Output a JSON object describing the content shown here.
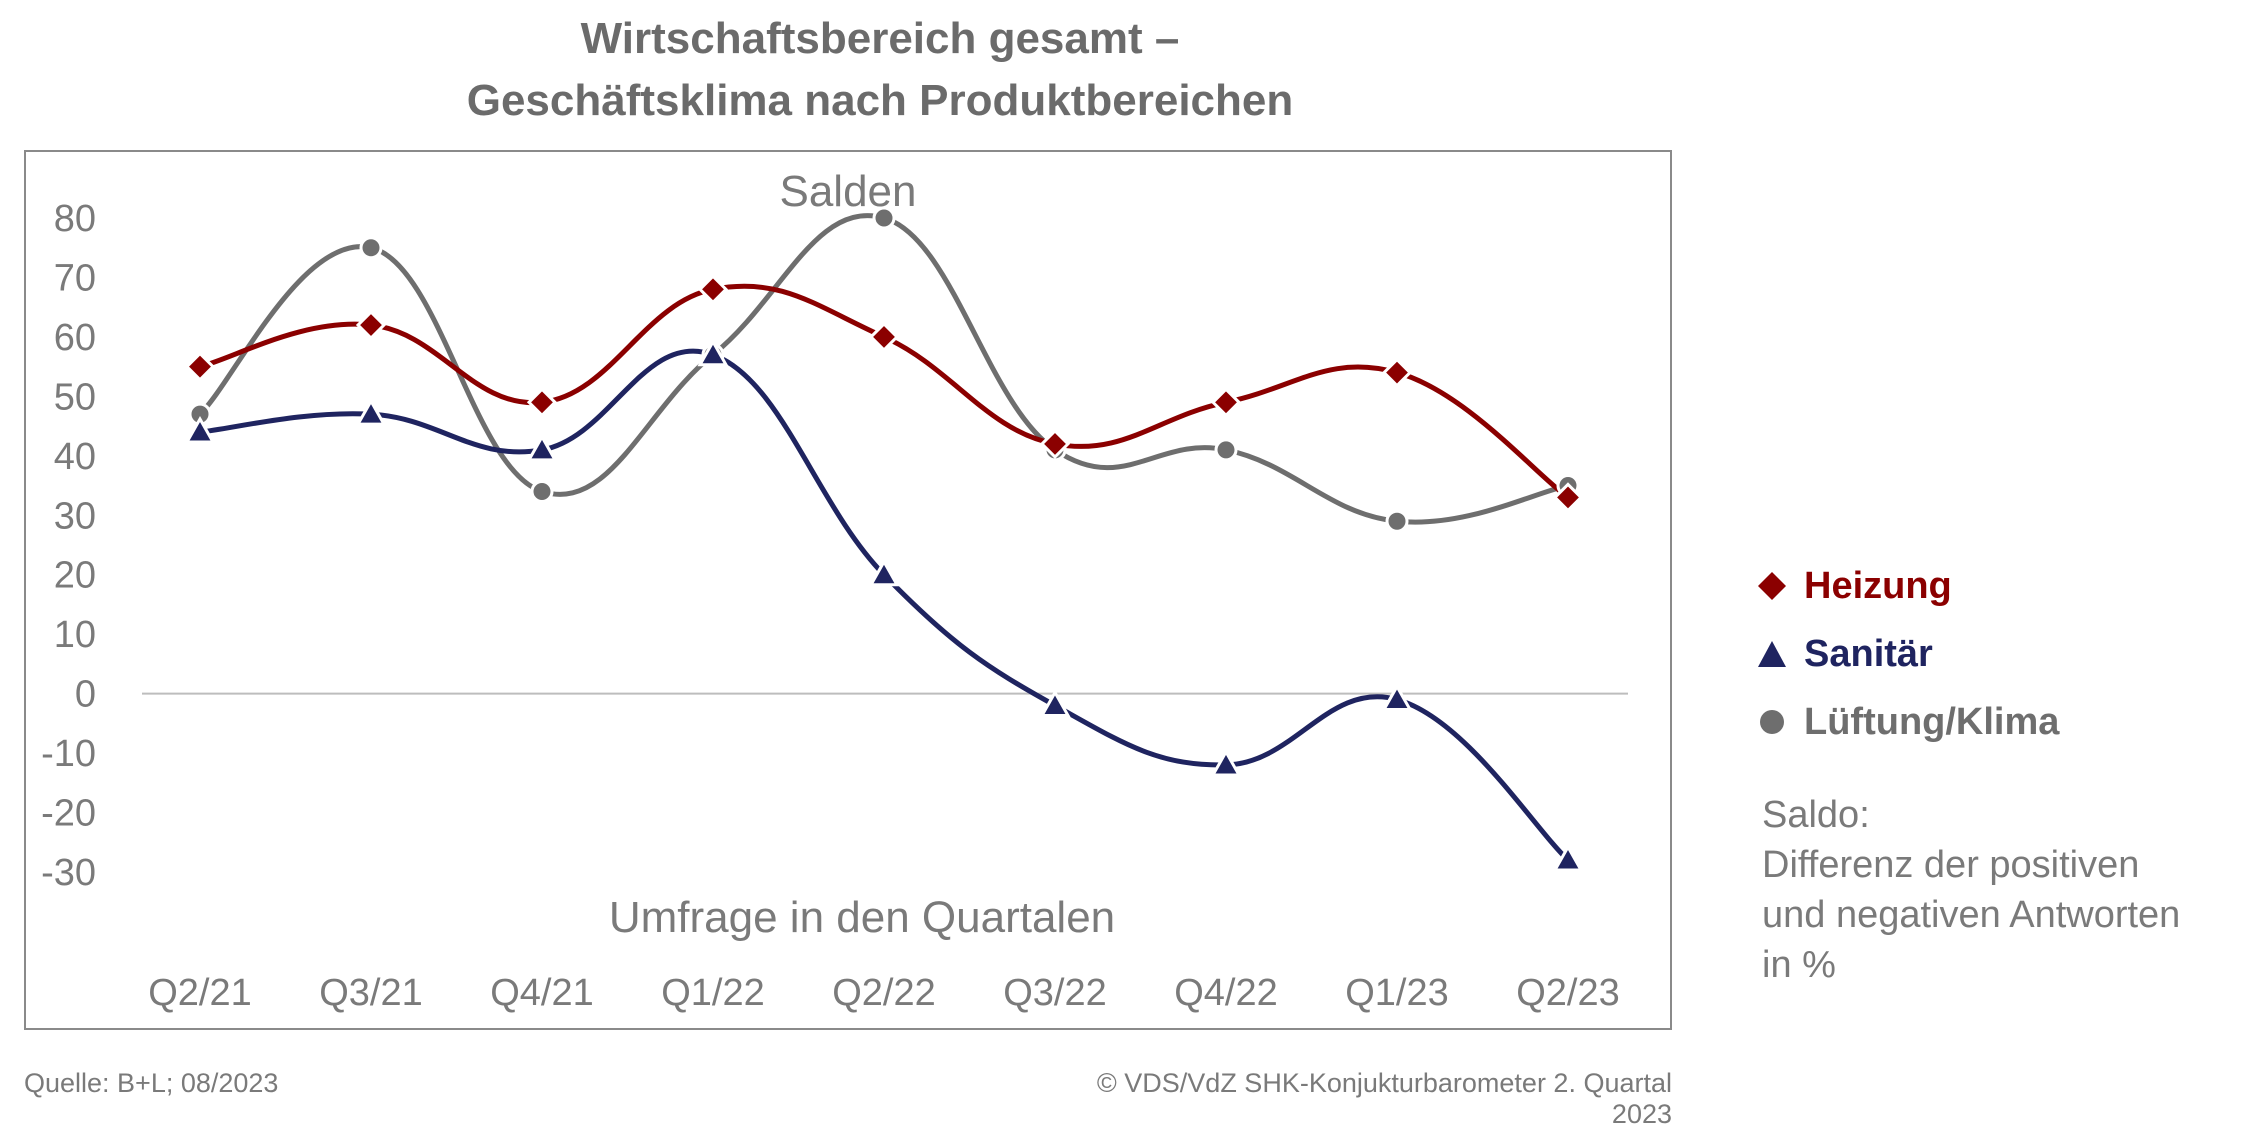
{
  "title": {
    "line1": "Wirtschaftsbereich gesamt –",
    "line2": "Geschäftsklima nach Produktbereichen"
  },
  "legend": {
    "items": [
      {
        "label": "Heizung",
        "color": "#8b0000",
        "icon": "diamond-icon"
      },
      {
        "label": "Sanitär",
        "color": "#1f2460",
        "icon": "triangle-icon"
      },
      {
        "label": "Lüftung/Klima",
        "color": "#6e6e6e",
        "icon": "circle-icon"
      }
    ]
  },
  "note": {
    "line1": "Saldo:",
    "line2": "Differenz der positiven",
    "line3": "und negativen Antworten",
    "line4": "in %"
  },
  "footer": {
    "source": "Quelle: B+L; 08/2023",
    "copyright": "© VDS/VdZ SHK-Konjukturbarometer 2. Quartal 2023"
  },
  "chart_data": {
    "type": "line",
    "title": "Salden",
    "xlabel": "Umfrage in den Quartalen",
    "ylabel": "",
    "ylim": [
      -30,
      80
    ],
    "yticks": [
      80,
      70,
      60,
      50,
      40,
      30,
      20,
      10,
      0,
      -10,
      -20,
      -30
    ],
    "categories": [
      "Q2/21",
      "Q3/21",
      "Q4/21",
      "Q1/22",
      "Q2/22",
      "Q3/22",
      "Q4/22",
      "Q1/23",
      "Q2/23"
    ],
    "grid": false,
    "legend_position": "right",
    "series": [
      {
        "name": "Heizung",
        "color": "#8b0000",
        "marker": "diamond",
        "values": [
          55,
          62,
          49,
          68,
          60,
          42,
          49,
          54,
          33
        ]
      },
      {
        "name": "Sanitär",
        "color": "#1f2460",
        "marker": "triangle",
        "values": [
          44,
          47,
          41,
          57,
          20,
          -2,
          -12,
          -1,
          -28
        ]
      },
      {
        "name": "Lüftung/Klima",
        "color": "#6e6e6e",
        "marker": "circle",
        "values": [
          47,
          75,
          34,
          57,
          80,
          41,
          41,
          29,
          35
        ]
      }
    ]
  }
}
